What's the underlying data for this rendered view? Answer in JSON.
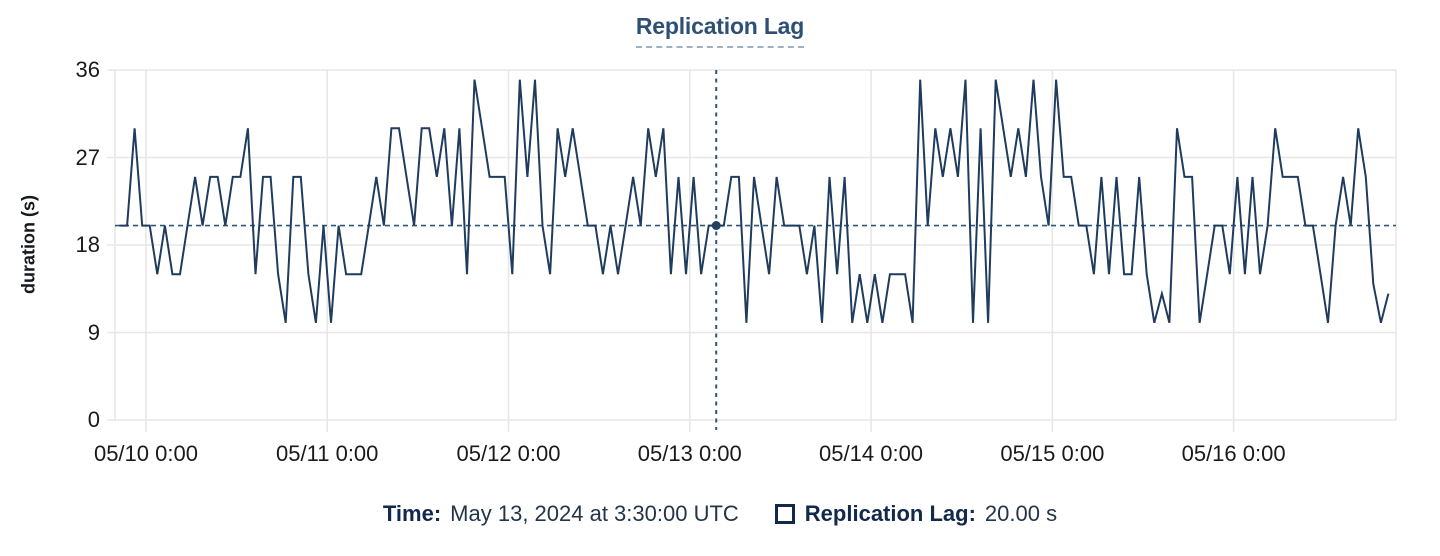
{
  "title": "Replication Lag",
  "y_axis": {
    "label": "duration (s)"
  },
  "tooltip": {
    "time_label": "Time:",
    "time_value": "May 13, 2024 at 3:30:00 UTC",
    "series_label": "Replication Lag:",
    "series_value": "20.00 s"
  },
  "colors": {
    "line": "#1f3c5e",
    "crosshair": "#2c5878",
    "dot": "#24415e",
    "grid": "#e7e7e7",
    "title": "#2e5077",
    "title_underline": "#9cb1c6",
    "legend_label": "#13294b",
    "legend_value": "#243548",
    "tick_text": "#1a1a1a"
  },
  "chart_data": {
    "type": "line",
    "title": "Replication Lag",
    "xlabel": "",
    "ylabel": "duration (s)",
    "ylim": [
      0,
      36
    ],
    "y_ticks": [
      0,
      9,
      18,
      27,
      36
    ],
    "x_tick_labels": [
      "05/10 0:00",
      "05/11 0:00",
      "05/12 0:00",
      "05/13 0:00",
      "05/14 0:00",
      "05/15 0:00",
      "05/16 0:00"
    ],
    "x_tick_hours": [
      0,
      24,
      48,
      72,
      96,
      120,
      144
    ],
    "x_domain_hours": [
      -4.1,
      165.5
    ],
    "grid": true,
    "legend_position": "bottom",
    "series": [
      {
        "name": "Replication Lag",
        "unit": "s",
        "start_time": "2024-05-09 20:30 UTC",
        "start_hour_offset": -3.5,
        "interval_hours": 1,
        "values": [
          20,
          20,
          30,
          20,
          20,
          15,
          20,
          15,
          15,
          20,
          25,
          20,
          25,
          25,
          20,
          25,
          25,
          30,
          15,
          25,
          25,
          15,
          10,
          25,
          25,
          15,
          10,
          20,
          10,
          20,
          15,
          15,
          15,
          20,
          25,
          20,
          30,
          30,
          25,
          20,
          30,
          30,
          25,
          30,
          20,
          30,
          15,
          35,
          30,
          25,
          25,
          25,
          15,
          35,
          25,
          35,
          20,
          15,
          30,
          25,
          30,
          25,
          20,
          20,
          15,
          20,
          15,
          20,
          25,
          20,
          30,
          25,
          30,
          15,
          25,
          15,
          25,
          15,
          20,
          20,
          20,
          25,
          25,
          10,
          25,
          20,
          15,
          25,
          20,
          20,
          20,
          15,
          20,
          10,
          25,
          15,
          25,
          10,
          15,
          10,
          15,
          10,
          15,
          15,
          15,
          10,
          35,
          20,
          30,
          25,
          30,
          25,
          35,
          10,
          30,
          10,
          35,
          30,
          25,
          30,
          25,
          35,
          25,
          20,
          35,
          25,
          25,
          20,
          20,
          15,
          25,
          15,
          25,
          15,
          15,
          25,
          15,
          10,
          13,
          10,
          30,
          25,
          25,
          10,
          15,
          20,
          20,
          15,
          25,
          15,
          25,
          15,
          20,
          30,
          25,
          25,
          25,
          20,
          20,
          15,
          10,
          20,
          25,
          20,
          30,
          25,
          14,
          10,
          13
        ]
      }
    ],
    "crosshair": {
      "hour_offset": 75.5,
      "value": 20,
      "time": "May 13, 2024 at 3:30:00 UTC",
      "value_label": "20.00 s"
    }
  }
}
